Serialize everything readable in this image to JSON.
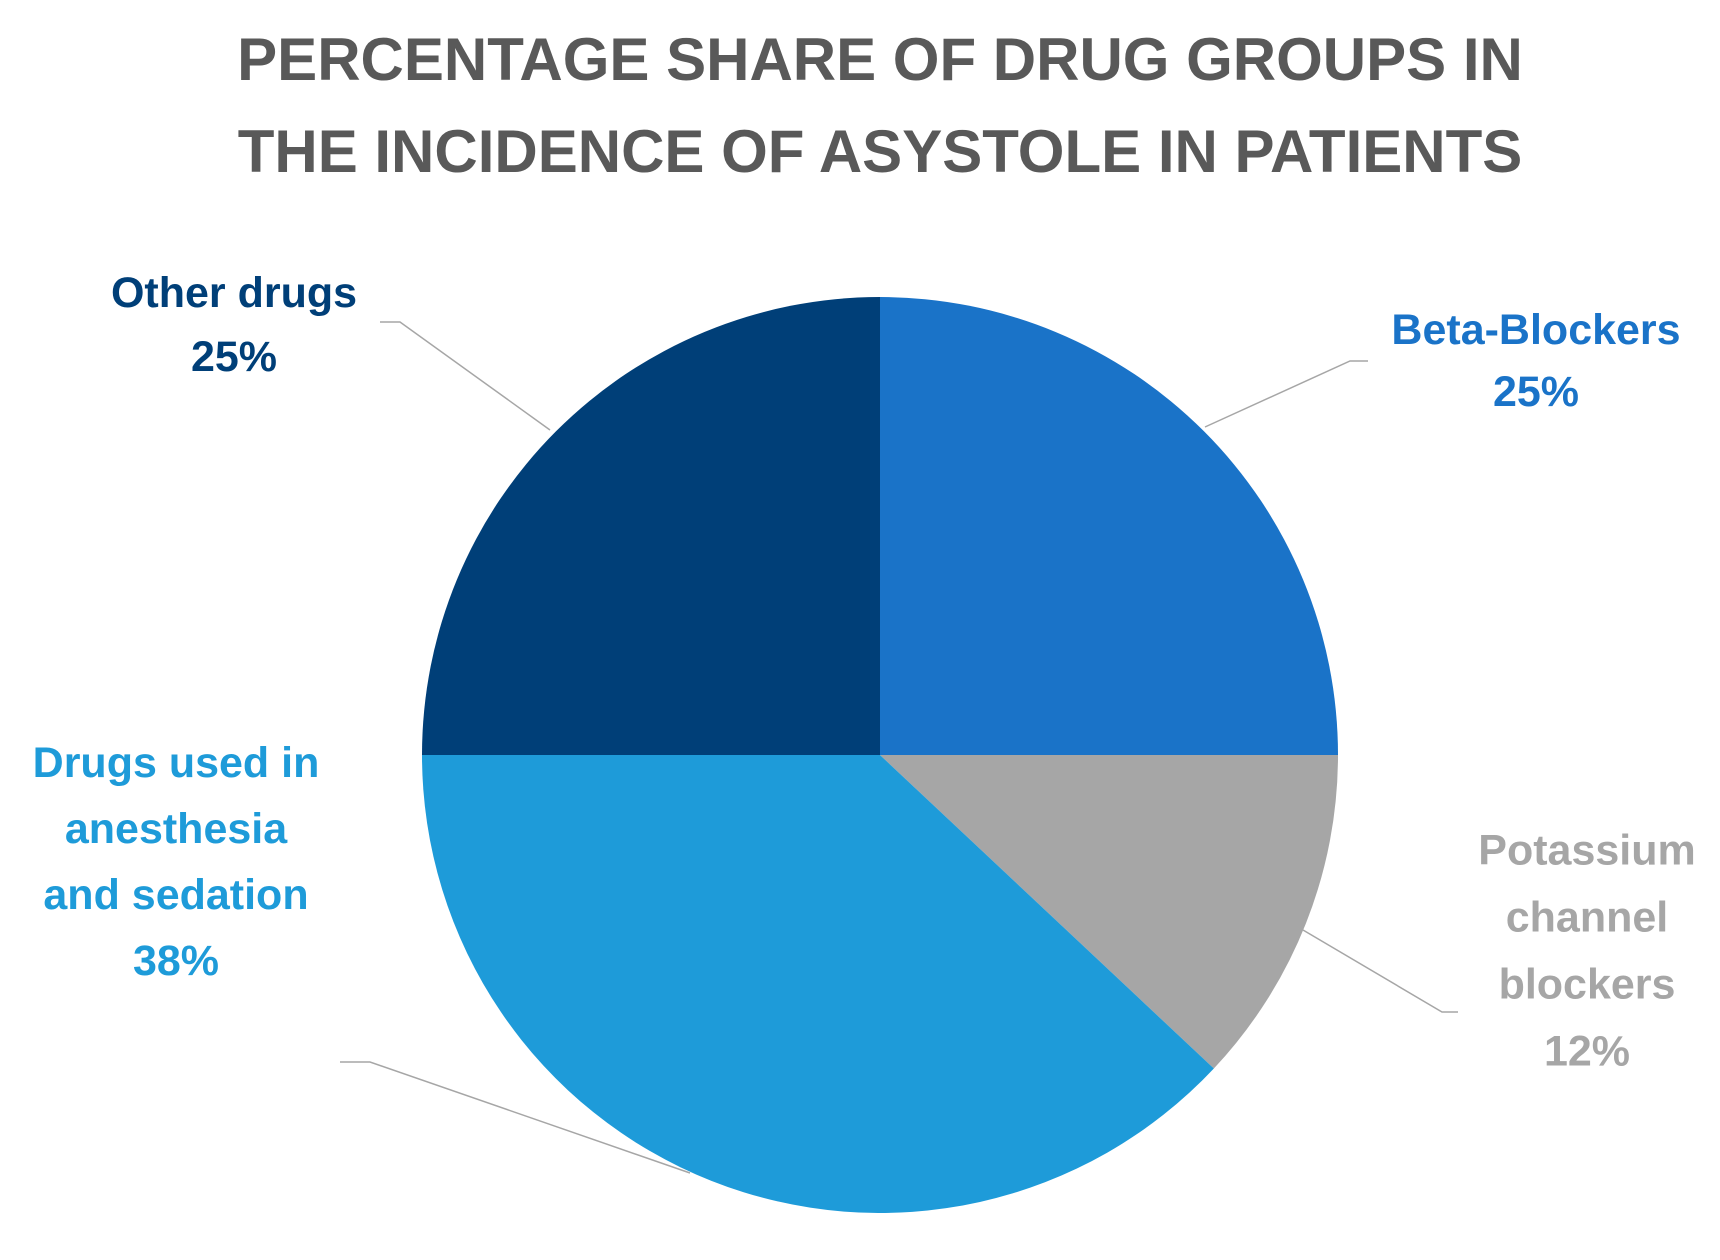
{
  "chart_data": {
    "type": "pie",
    "title_lines": [
      "PERCENTAGE SHARE OF DRUG GROUPS IN",
      "THE INCIDENCE OF ASYSTOLE IN PATIENTS"
    ],
    "start_angle_deg": 0,
    "direction": "clockwise",
    "slices": [
      {
        "label_lines": [
          "Beta-Blockers"
        ],
        "percent_label": "25%",
        "value": 25,
        "color": "#1a73c8",
        "label_color": "#1a73c8"
      },
      {
        "label_lines": [
          "Potassium",
          "channel",
          "blockers"
        ],
        "percent_label": "12%",
        "value": 12,
        "color": "#a6a6a6",
        "label_color": "#a6a6a6"
      },
      {
        "label_lines": [
          "Drugs used in",
          "anesthesia",
          "and sedation"
        ],
        "percent_label": "38%",
        "value": 38,
        "color": "#1e9bd9",
        "label_color": "#1e9bd9"
      },
      {
        "label_lines": [
          "Other drugs"
        ],
        "percent_label": "25%",
        "value": 25,
        "color": "#003f78",
        "label_color": "#003f78"
      }
    ]
  }
}
